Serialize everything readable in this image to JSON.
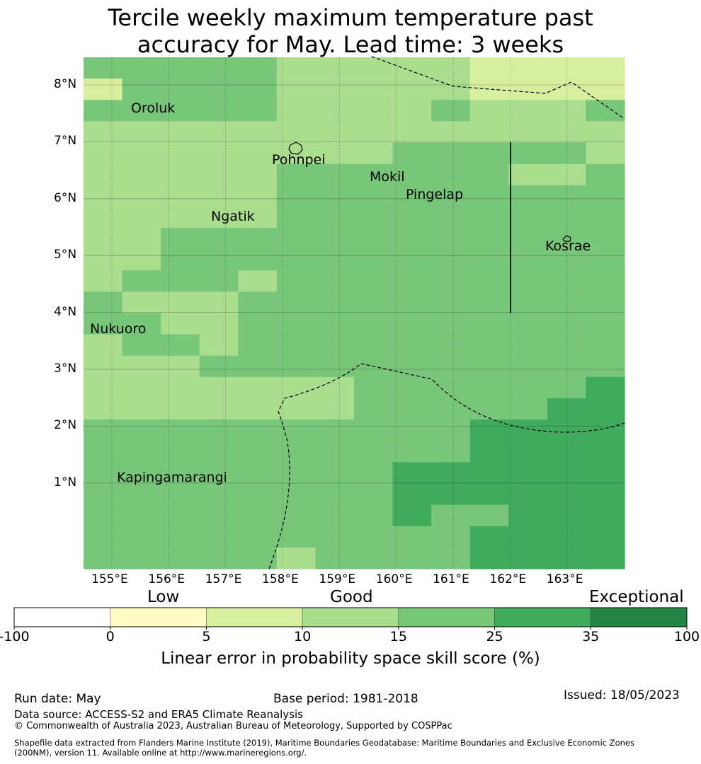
{
  "title": "Tercile weekly maximum temperature past\naccuracy for May. Lead time: 3 weeks",
  "map": {
    "lon_ticks": [
      "155°E",
      "156°E",
      "157°E",
      "158°E",
      "159°E",
      "160°E",
      "161°E",
      "162°E",
      "163°E"
    ],
    "lat_ticks": [
      "8°N",
      "7°N",
      "6°N",
      "5°N",
      "4°N",
      "3°N",
      "2°N",
      "1°N"
    ],
    "places": [
      "Oroluk",
      "Pohnpei",
      "Mokil",
      "Pingelap",
      "Ngatik",
      "Kosrae",
      "Nukuoro",
      "Kapingamarangi"
    ],
    "grid_levels": [
      "44444333332222",
      "24444333332222",
      "44444333343334",
      "33333333333333",
      "33333333444443",
      "33333444444334",
      "33333444444444",
      "33333444444444",
      "33444444444444",
      "33444444444444",
      "34443444444444",
      "43334444444444",
      "44334444444444",
      "34434444444444",
      "33344444444444",
      "33333334444445",
      "33333334444455",
      "44444444445555",
      "44444444445555",
      "44444444555555",
      "44444444555555",
      "44444444544555",
      "44444444445555",
      "44444344445555"
    ],
    "level_colors": [
      "#ffffff",
      "#fffcc8",
      "#d8efa0",
      "#aadd8e",
      "#78c679",
      "#41ab5d",
      "#238443"
    ]
  },
  "colorbar": {
    "category_labels": [
      "Low",
      "Good",
      "Exceptional"
    ],
    "ticks": [
      "-100",
      "0",
      "5",
      "10",
      "15",
      "25",
      "35",
      "100"
    ],
    "colors": [
      "#ffffff",
      "#fffcc8",
      "#d8efa0",
      "#aadd8e",
      "#78c679",
      "#41ab5d",
      "#238443"
    ],
    "title": "Linear error in probability space skill score (%)"
  },
  "footer": {
    "run_date": "Run date: May",
    "base_period": "Base period: 1981-2018",
    "issued": "Issued: 18/05/2023",
    "data_source": "Data source: ACCESS-S2 and ERA5 Climate Reanalysis",
    "copyright": "© Commonwealth of Australia 2023, Australian Bureau of Meteorology, Supported by COSPPac",
    "shapefile_line1": "Shapefile data extracted from Flanders Marine Institute (2019), Maritime Boundaries Geodatabase: Maritime Boundaries and Exclusive Economic Zones",
    "shapefile_line2": "(200NM), version 11. Available online at http://www.marineregions.org/."
  }
}
